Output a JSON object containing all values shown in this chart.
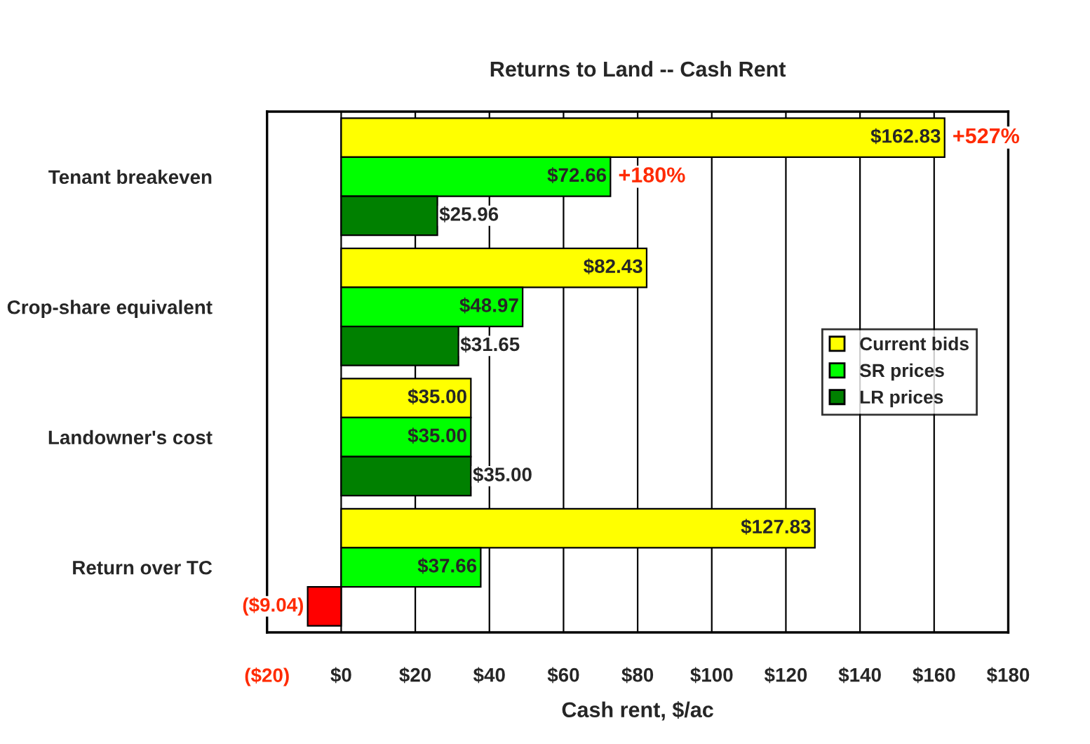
{
  "chart_data": {
    "type": "bar",
    "orientation": "horizontal",
    "title": "Returns to Land -- Cash Rent",
    "xlabel": "Cash rent, $/ac",
    "categories": [
      "Tenant breakeven",
      "Crop-share equivalent",
      "Landowner's cost",
      "Return over TC"
    ],
    "series": [
      {
        "name": "Current bids",
        "color": "#ffff00",
        "values": [
          162.83,
          82.43,
          35.0,
          127.83
        ],
        "value_labels": [
          "$162.83",
          "$82.43",
          "$35.00",
          "$127.83"
        ]
      },
      {
        "name": "SR prices",
        "color": "#00ff00",
        "values": [
          72.66,
          48.97,
          35.0,
          37.66
        ],
        "value_labels": [
          "$72.66",
          "$48.97",
          "$35.00",
          "$37.66"
        ]
      },
      {
        "name": "LR prices",
        "color": "#008000",
        "colors": [
          "#008000",
          "#008000",
          "#008000",
          "#ff0000"
        ],
        "values": [
          25.96,
          31.65,
          35.0,
          -9.04
        ],
        "value_labels": [
          "$25.96",
          "$31.65",
          "$35.00",
          "($9.04)"
        ]
      }
    ],
    "annotations": [
      "+527%",
      "+180%"
    ],
    "xlim": [
      -20,
      180
    ],
    "xticks": [
      {
        "value": -20,
        "label": "($20)"
      },
      {
        "value": 0,
        "label": "$0"
      },
      {
        "value": 20,
        "label": "$20"
      },
      {
        "value": 40,
        "label": "$40"
      },
      {
        "value": 60,
        "label": "$60"
      },
      {
        "value": 80,
        "label": "$80"
      },
      {
        "value": 100,
        "label": "$100"
      },
      {
        "value": 120,
        "label": "$120"
      },
      {
        "value": 140,
        "label": "$140"
      },
      {
        "value": 160,
        "label": "$160"
      },
      {
        "value": 180,
        "label": "$180"
      }
    ],
    "grid": "x",
    "legend": "right"
  }
}
